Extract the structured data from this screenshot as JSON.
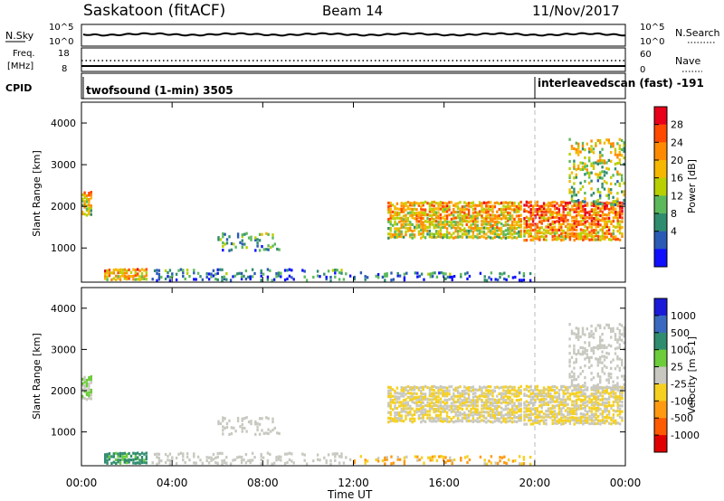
{
  "header": {
    "station": "Saskatoon (fitACF)",
    "beam": "Beam 14",
    "date": "11/Nov/2017"
  },
  "noise_panel": {
    "left_label": "N.Sky",
    "right_label": "N.Search",
    "left_ticks": [
      "10^5",
      "10^0"
    ],
    "right_ticks": [
      "10^5",
      "10^0"
    ]
  },
  "freq_panel": {
    "left_label_1": "Freq.",
    "left_label_2": "[MHz]",
    "right_label": "Nave",
    "left_ticks": [
      "18",
      "8"
    ],
    "right_ticks": [
      "60",
      "0"
    ]
  },
  "cpid_panel": {
    "label": "CPID",
    "program_1": "twofsound (1-min) 3505",
    "program_2": "interleavedscan (fast) -191"
  },
  "power_colorbar": {
    "label": "Power [dB]",
    "ticks": [
      "28",
      "24",
      "20",
      "16",
      "12",
      "8",
      "4"
    ],
    "colors": [
      "#e8001a",
      "#ff4a00",
      "#ff8a00",
      "#f5b700",
      "#b8d000",
      "#5cb95b",
      "#2f8c6e",
      "#2a5ab4",
      "#1010ff"
    ]
  },
  "velocity_colorbar": {
    "label": "Velocity [m s-1]",
    "ticks": [
      "1000",
      "500",
      "100",
      "25",
      "-25",
      "-100",
      "-500",
      "-1000"
    ],
    "colors": [
      "#1a1ad8",
      "#3a6abf",
      "#2f8c6e",
      "#6ccc3a",
      "#c8c8c0",
      "#f5d020",
      "#ff9a10",
      "#ff5a00",
      "#e00000"
    ]
  },
  "x_axis": {
    "label": "Time UT",
    "ticks": [
      "00:00",
      "04:00",
      "08:00",
      "12:00",
      "16:00",
      "20:00",
      "00:00"
    ]
  },
  "y_axis": {
    "label": "Slant Range [km]",
    "ticks": [
      "4000",
      "3000",
      "2000",
      "1000"
    ]
  },
  "chart_data": {
    "type": "heatmap",
    "title": "Saskatoon (fitACF)",
    "xlabel": "Time UT",
    "ylabel": "Slant Range [km]",
    "x_range_hours": [
      0,
      24
    ],
    "ylim": [
      180,
      4500
    ],
    "mode_change_hour": 20,
    "power_range_db": [
      0,
      30
    ],
    "velocity_range": [
      -1000,
      1000
    ],
    "echo_regions": [
      {
        "t0": 0.0,
        "t1": 0.5,
        "r0": 1750,
        "r1": 2350,
        "power": 18,
        "velocity": 25
      },
      {
        "t0": 1.0,
        "t1": 3.0,
        "r0": 200,
        "r1": 480,
        "power": 20,
        "velocity": 150
      },
      {
        "t0": 3.0,
        "t1": 12.0,
        "r0": 180,
        "r1": 480,
        "power": 8,
        "velocity": 0
      },
      {
        "t0": 6.0,
        "t1": 8.8,
        "r0": 900,
        "r1": 1350,
        "power": 10,
        "velocity": 0
      },
      {
        "t0": 13.5,
        "t1": 19.5,
        "r0": 1200,
        "r1": 2100,
        "power": 18,
        "velocity": -25
      },
      {
        "t0": 19.5,
        "t1": 24.0,
        "r0": 1150,
        "r1": 2100,
        "power": 22,
        "velocity": -25
      },
      {
        "t0": 21.5,
        "t1": 24.0,
        "r0": 2000,
        "r1": 3600,
        "power": 14,
        "velocity": 0
      },
      {
        "t0": 12.0,
        "t1": 20.0,
        "r0": 180,
        "r1": 400,
        "power": 6,
        "velocity": -100
      }
    ]
  }
}
